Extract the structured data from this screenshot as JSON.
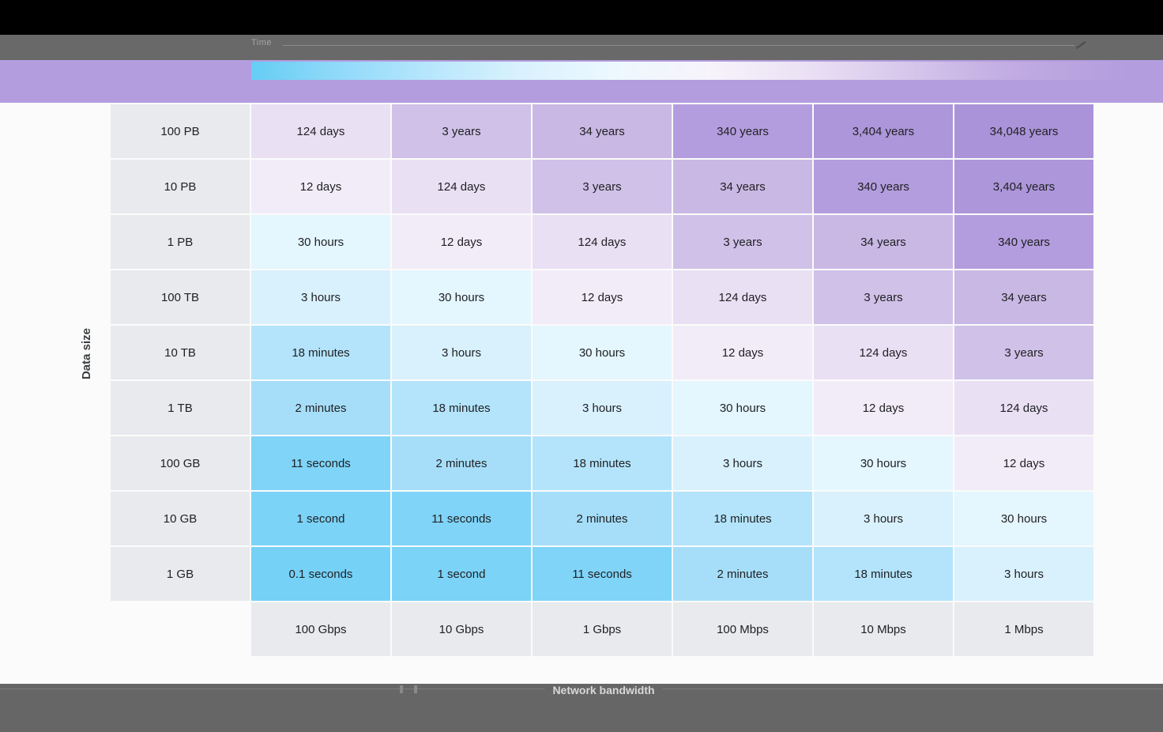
{
  "page": {
    "background": "#fbfbfb",
    "top_bar_color": "#000000",
    "toolbar_color": "#696969",
    "footer_color": "#666666"
  },
  "toolbar": {
    "label": "Time"
  },
  "legend": {
    "band_color": "#b49dde",
    "gradient_start_color": "#65cdf5",
    "gradient_mid_color": "#f7f4fb",
    "gradient_end_color": "#b49dde"
  },
  "chart_data": {
    "type": "heatmap",
    "title": "",
    "xlabel": "Network bandwidth",
    "ylabel": "Data size",
    "legend_position": "top",
    "grid": false,
    "columns": [
      "100 Gbps",
      "10 Gbps",
      "1 Gbps",
      "100 Mbps",
      "10 Mbps",
      "1 Mbps"
    ],
    "rows": [
      "100 PB",
      "10 PB",
      "1 PB",
      "100 TB",
      "10 TB",
      "1 TB",
      "100 GB",
      "10 GB",
      "1 GB"
    ],
    "values": [
      [
        "124 days",
        "3 years",
        "34 years",
        "340 years",
        "3,404 years",
        "34,048 years"
      ],
      [
        "12 days",
        "124 days",
        "3 years",
        "34 years",
        "340 years",
        "3,404 years"
      ],
      [
        "30 hours",
        "12 days",
        "124 days",
        "3 years",
        "34 years",
        "340 years"
      ],
      [
        "3 hours",
        "30 hours",
        "12 days",
        "124 days",
        "3 years",
        "34 years"
      ],
      [
        "18 minutes",
        "3 hours",
        "30 hours",
        "12 days",
        "124 days",
        "3 years"
      ],
      [
        "2 minutes",
        "18 minutes",
        "3 hours",
        "30 hours",
        "12 days",
        "124 days"
      ],
      [
        "11 seconds",
        "2 minutes",
        "18 minutes",
        "3 hours",
        "30 hours",
        "12 days"
      ],
      [
        "1 second",
        "11 seconds",
        "2 minutes",
        "18 minutes",
        "3 hours",
        "30 hours"
      ],
      [
        "0.1 seconds",
        "1 second",
        "11 seconds",
        "2 minutes",
        "18 minutes",
        "3 hours"
      ]
    ],
    "value_colors": {
      "0.1 seconds": "#76d1f7",
      "1 second": "#7bd3f7",
      "11 seconds": "#7fd4f8",
      "2 minutes": "#a6def9",
      "18 minutes": "#b3e4fb",
      "3 hours": "#d9f1fd",
      "30 hours": "#e4f6fe",
      "12 days": "#f2ecf8",
      "124 days": "#eae0f4",
      "3 years": "#d0c1e8",
      "34 years": "#c9b8e4",
      "340 years": "#b49dde",
      "3,404 years": "#ad96da",
      "34,048 years": "#ab93d9"
    },
    "label_cell_color": "#e8eaed"
  },
  "footer": {
    "label": "Network bandwidth"
  }
}
